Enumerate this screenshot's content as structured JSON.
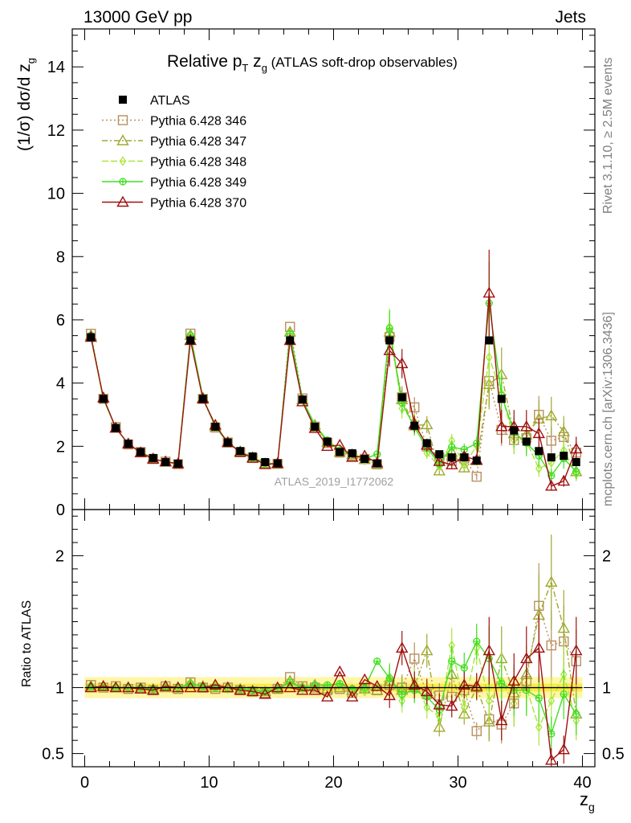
{
  "header": {
    "left": "13000 GeV pp",
    "right": "Jets"
  },
  "title": {
    "main": "Relative p",
    "sub": "T",
    "main2": " z",
    "sub2": "g",
    "note": " (ATLAS soft-drop observables)"
  },
  "side": {
    "rivet": "Rivet 3.1.10, ≥ 2.5M events",
    "mcplots": "mcplots.cern.ch [arXiv:1306.3436]"
  },
  "watermark": "ATLAS_2019_I1772062",
  "axes": {
    "ylabel_top": "(1/σ) dσ/d z",
    "ylabel_top_sub": "g",
    "ylabel_bottom": "Ratio to ATLAS",
    "xlabel": "z",
    "xlabel_sub": "g"
  },
  "chart_data": {
    "type": "line",
    "x": [
      0.5,
      1.5,
      2.5,
      3.5,
      4.5,
      5.5,
      6.5,
      7.5,
      8.5,
      9.5,
      10.5,
      11.5,
      12.5,
      13.5,
      14.5,
      15.5,
      16.5,
      17.5,
      18.5,
      19.5,
      20.5,
      21.5,
      22.5,
      23.5,
      24.5,
      25.5,
      26.5,
      27.5,
      28.5,
      29.5,
      30.5,
      31.5,
      32.5,
      33.5,
      34.5,
      35.5,
      36.5,
      37.5,
      38.5,
      39.5
    ],
    "xlim": [
      -1,
      41
    ],
    "xticks": [
      0,
      10,
      20,
      30,
      40
    ],
    "top_panel": {
      "ylim": [
        0,
        15.2
      ],
      "yticks": [
        0,
        2,
        4,
        6,
        8,
        10,
        12,
        14
      ]
    },
    "ratio_panel": {
      "ylim": [
        0.4,
        2.35
      ],
      "yticks": [
        0.5,
        1,
        2
      ],
      "yticklabels": [
        "0.5",
        "1",
        "2"
      ]
    },
    "data": {
      "name": "ATLAS",
      "color": "#000000",
      "values": [
        5.45,
        3.5,
        2.58,
        2.08,
        1.82,
        1.63,
        1.5,
        1.45,
        5.35,
        3.5,
        2.62,
        2.12,
        1.85,
        1.68,
        1.5,
        1.46,
        5.35,
        3.48,
        2.62,
        2.15,
        1.82,
        1.78,
        1.6,
        1.46,
        5.35,
        3.55,
        2.65,
        2.1,
        1.75,
        1.65,
        1.65,
        1.55,
        5.35,
        3.5,
        2.5,
        2.15,
        1.85,
        1.65,
        1.7,
        1.5
      ]
    },
    "series": [
      {
        "name": "Pythia 6.428 346",
        "color": "#b8905e",
        "marker": "square-open",
        "dash": "2,3",
        "ratio": [
          1.02,
          1.0,
          1.01,
          0.99,
          1.0,
          0.98,
          1.01,
          0.99,
          1.04,
          1.0,
          0.99,
          1.0,
          0.98,
          0.97,
          0.96,
          0.99,
          1.08,
          1.01,
          1.0,
          0.98,
          0.99,
          0.96,
          1.0,
          0.98,
          1.02,
          1.0,
          1.22,
          0.95,
          0.94,
          0.93,
          0.98,
          0.67,
          0.76,
          0.72,
          0.88,
          1.05,
          1.62,
          1.32,
          1.35,
          1.2
        ]
      },
      {
        "name": "Pythia 6.428 347",
        "color": "#a0a830",
        "marker": "triangle-open",
        "dash": "7,3,2,3",
        "ratio": [
          1.01,
          1.01,
          1.0,
          1.0,
          0.99,
          0.99,
          1.0,
          1.0,
          1.03,
          1.01,
          1.0,
          1.0,
          0.99,
          0.98,
          0.97,
          0.99,
          1.05,
          1.0,
          1.02,
          0.99,
          1.0,
          0.98,
          0.99,
          0.98,
          1.05,
          0.98,
          1.0,
          1.28,
          0.7,
          1.1,
          0.8,
          1.0,
          0.74,
          1.22,
          0.96,
          1.1,
          1.55,
          1.8,
          1.45,
          0.8
        ]
      },
      {
        "name": "Pythia 6.428 348",
        "color": "#a8e838",
        "marker": "diamond-open",
        "dash": "8,3",
        "ratio": [
          1.0,
          1.0,
          1.0,
          1.0,
          0.99,
          1.0,
          1.0,
          0.99,
          1.02,
          1.0,
          1.01,
          0.99,
          1.0,
          0.99,
          0.98,
          1.0,
          1.03,
          0.99,
          1.0,
          1.01,
          1.02,
          0.98,
          0.97,
          1.0,
          1.08,
          0.9,
          1.05,
          0.85,
          0.78,
          1.32,
          0.85,
          1.3,
          0.9,
          1.05,
          0.88,
          1.0,
          0.7,
          0.9,
          1.1,
          0.75
        ]
      },
      {
        "name": "Pythia 6.428 349",
        "color": "#40e020",
        "marker": "cross-circle",
        "dash": "",
        "ratio": [
          1.01,
          1.0,
          1.0,
          1.0,
          1.0,
          0.99,
          1.0,
          1.0,
          1.03,
          1.01,
          1.0,
          1.0,
          0.99,
          0.98,
          0.97,
          0.99,
          1.04,
          1.0,
          1.02,
          1.02,
          1.03,
          0.99,
          1.0,
          1.2,
          1.07,
          0.95,
          0.98,
          0.93,
          0.83,
          1.2,
          1.15,
          1.35,
          1.22,
          1.03,
          0.98,
          0.98,
          0.92,
          0.65,
          0.95,
          0.8
        ]
      },
      {
        "name": "Pythia 6.428 370",
        "color": "#a01010",
        "marker": "triangle-open",
        "dash": "",
        "ratio": [
          1.0,
          1.01,
          1.0,
          1.0,
          0.99,
          0.98,
          1.01,
          1.0,
          1.0,
          1.0,
          1.02,
          1.0,
          0.98,
          0.97,
          0.95,
          1.0,
          1.0,
          0.98,
          0.98,
          0.93,
          1.12,
          0.93,
          1.06,
          1.01,
          0.94,
          1.3,
          1.02,
          0.97,
          0.87,
          0.86,
          1.02,
          1.01,
          1.28,
          0.75,
          1.05,
          1.22,
          1.3,
          0.45,
          0.53,
          1.28
        ]
      }
    ]
  }
}
